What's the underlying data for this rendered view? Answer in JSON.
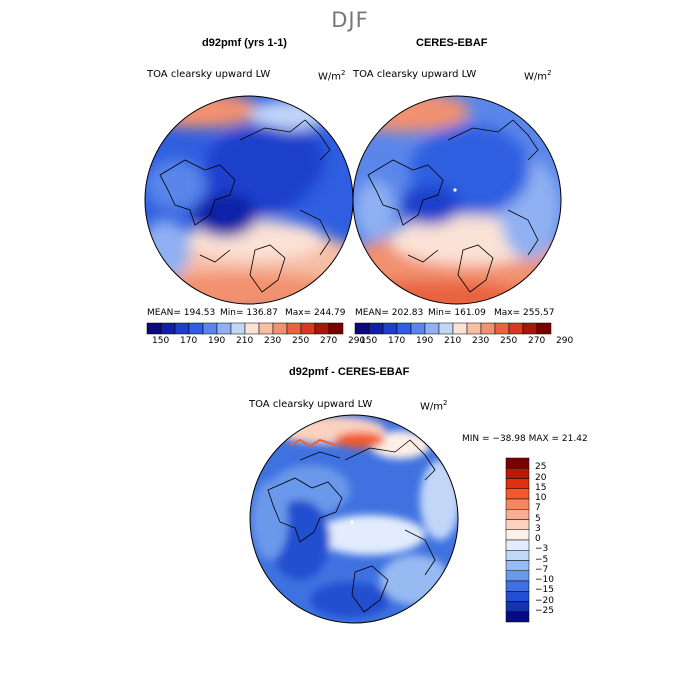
{
  "figure": {
    "season": "DJF"
  },
  "panels": [
    {
      "title": "d92pmf (yrs 1-1)",
      "variable": "TOA clearsky upward LW",
      "units": "W/m",
      "stats": {
        "mean": "MEAN= 194.53",
        "min": "Min= 136.87",
        "max": "Max= 244.79"
      }
    },
    {
      "title": "CERES-EBAF",
      "variable": "TOA clearsky upward LW",
      "units": "W/m",
      "stats": {
        "mean": "MEAN= 202.83",
        "min": "Min= 161.09",
        "max": "Max= 255.57"
      }
    }
  ],
  "abs_colorbar": {
    "labels": [
      "150",
      "170",
      "190",
      "210",
      "230",
      "250",
      "270",
      "290"
    ],
    "colors": [
      "#0a0a7a",
      "#1020a8",
      "#1e3fcc",
      "#2f5fe0",
      "#5a86ea",
      "#8fb0f2",
      "#c3d6f8",
      "#fbe2d6",
      "#f7bda5",
      "#f29170",
      "#e8633f",
      "#d53a20",
      "#a8160c",
      "#7a0000"
    ]
  },
  "diff_panel": {
    "title": "d92pmf - CERES-EBAF",
    "variable": "TOA clearsky upward LW",
    "units": "W/m",
    "stats": "MIN = −38.98  MAX =  21.42"
  },
  "diff_colorbar": {
    "labels": [
      "25",
      "20",
      "15",
      "10",
      "7",
      "5",
      "3",
      "0",
      "−3",
      "−5",
      "−7",
      "−10",
      "−15",
      "−20",
      "−25"
    ],
    "colors": [
      "#7a0000",
      "#b81a0a",
      "#e03010",
      "#f25a2c",
      "#f58660",
      "#f8ac90",
      "#fbd2c0",
      "#fdf0e6",
      "#e2ecfc",
      "#c2d6f8",
      "#98baf2",
      "#6a98ea",
      "#3f72e0",
      "#2350d0",
      "#1234b0",
      "#080a80"
    ]
  }
}
